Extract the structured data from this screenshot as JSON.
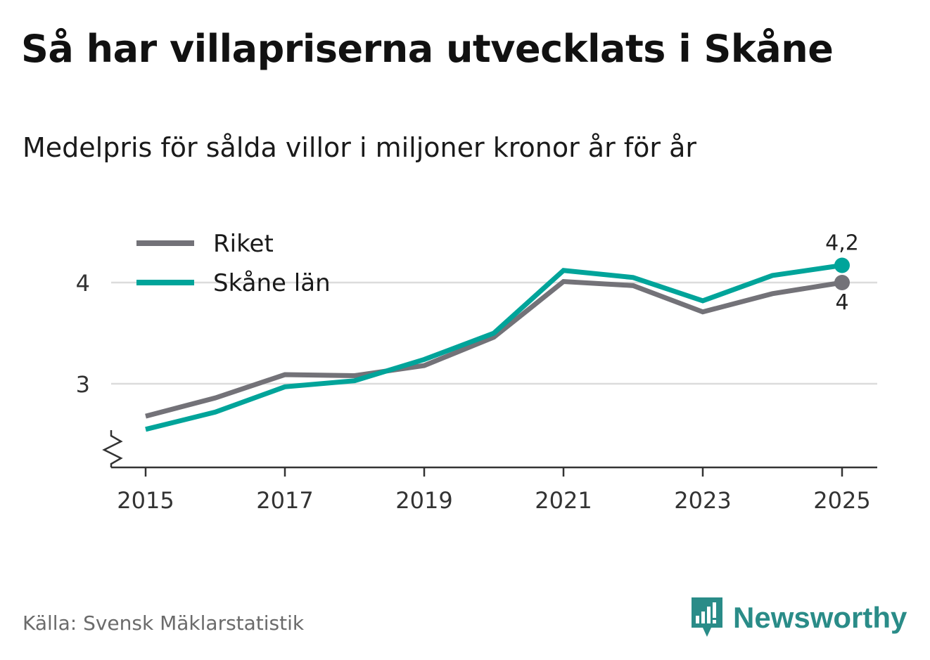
{
  "title": "Så har villapriserna utvecklats i Skåne",
  "subtitle": "Medelpris för sålda villor i miljoner kronor år för år",
  "source": "Källa: Svensk Mäklarstatistik",
  "brand": {
    "name": "Newsworthy",
    "icon": "bar-chart-speech-bubble-icon",
    "color": "#2a8c88"
  },
  "chart_data": {
    "type": "line",
    "title": "Så har villapriserna utvecklats i Skåne",
    "subtitle": "Medelpris för sålda villor i miljoner kronor år för år",
    "xlabel": "",
    "ylabel": "",
    "x": [
      2015,
      2016,
      2017,
      2018,
      2019,
      2020,
      2021,
      2022,
      2023,
      2024,
      2025
    ],
    "x_ticks": [
      "2015",
      "2017",
      "2019",
      "2021",
      "2023",
      "2025"
    ],
    "y_ticks": [
      3,
      4
    ],
    "y_tick_labels": [
      "3",
      "4"
    ],
    "ylim": [
      2.2,
      4.4
    ],
    "y_axis_break": true,
    "grid": true,
    "legend_position": "top-left",
    "series": [
      {
        "name": "Riket",
        "color": "#737278",
        "values": [
          2.68,
          2.86,
          3.09,
          3.08,
          3.18,
          3.46,
          4.01,
          3.97,
          3.71,
          3.89,
          4.0
        ],
        "end_label": "4"
      },
      {
        "name": "Skåne län",
        "color": "#00a49a",
        "values": [
          2.55,
          2.72,
          2.97,
          3.03,
          3.24,
          3.5,
          4.12,
          4.05,
          3.82,
          4.07,
          4.17
        ],
        "end_label": "4,2"
      }
    ]
  }
}
